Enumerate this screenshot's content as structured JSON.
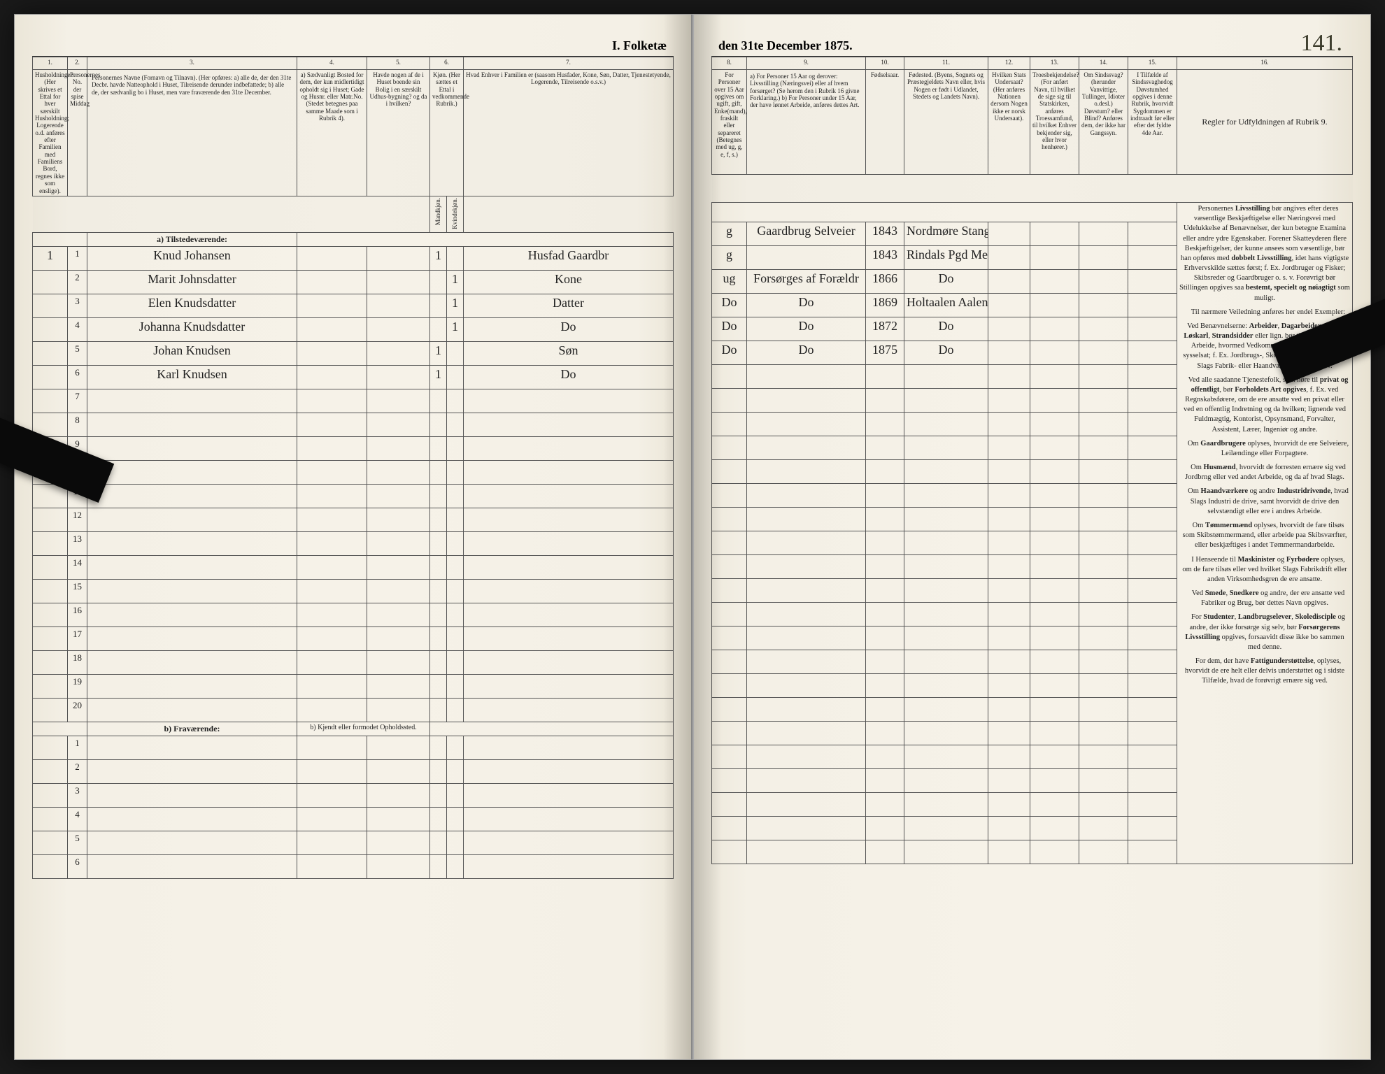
{
  "header": {
    "title_left": "I. Folketæ",
    "title_right": "den 31te December 1875.",
    "page_number": "141."
  },
  "columns_left": {
    "c1": "1.",
    "c2": "2.",
    "c3": "3.",
    "c4": "4.",
    "c5": "5.",
    "c6": "6.",
    "c7": "7.",
    "h1": "Husholdninger.\n(Her skrives et Ettal for hver særskilt Husholdning; Logerende o.d. anføres efter Familien med Familiens Bord, regnes ikke som enslige).",
    "h2": "Personernes No. der spise Middag",
    "h3": "Personernes Navne (Fornavn og Tilnavn).\n(Her opføres:\na) alle de, der den 31te Decbr. havde Natteophold i Huset, Tilreisende derunder indbefattede;\nb) alle de, der sædvanlig bo i Huset, men vare fraværende den 31te December.",
    "h4": "a) Sædvanligt Bosted for dem, der kun midlertidigt opholdt sig i Huset; Gade og Husnr. eller Matr.No. (Stedet betegnes paa samme Maade som i Rubrik 4).",
    "h5": "Havde nogen af de i Huset boende sin Bolig i en særskilt Udhus-bygning? og da i hvilken?",
    "h6a": "Mandkjøn.",
    "h6b": "Kvindekjøn.",
    "h6": "Kjøn.\n(Her sættes et Ettal i vedkommende Rubrik.)",
    "h7": "Hvad Enhver i Familien er (saasom Husfader, Kone, Søn, Datter, Tjenestetyende, Logerende, Tilreisende o.s.v.)"
  },
  "columns_right": {
    "c8": "8.",
    "c9": "9.",
    "c10": "10.",
    "c11": "11.",
    "c12": "12.",
    "c13": "13.",
    "c14": "14.",
    "c15": "15.",
    "c16": "16.",
    "h8": "For Personer over 15 Aar opgives om ugift, gift, Enke(mand), fraskilt eller separeret (Betegnes med ug, g, e, f, s.)",
    "h9": "a) For Personer 15 Aar og derover: Livsstilling (Næringsvei) eller af hvem forsørget? (Se herom den i Rubrik 16 givne Forklaring.)\nb) For Personer under 15 Aar, der have lønnet Arbeide, anføres dettes Art.",
    "h10": "Fødselsaar.",
    "h11": "Fødested.\n(Byens, Sognets og Præstegjeldets Navn eller, hvis Nogen er født i Udlandet, Stedets og Landets Navn).",
    "h12": "Hvilken Stats Undersaat? (Her anføres Nationen dersom Nogen ikke er norsk Undersaat).",
    "h13": "Troesbekjendelse? (For anført Navn, til hvilket de sige sig til Statskirken, anføres Troessamfund, til hvilket Enhver bekjender sig, eller hvor henhører.)",
    "h14": "Om Sindssvag? (herunder Vanvittige, Tullinger, Idioter o.desl.) Døvstum? eller Blind? Anføres dem, der ikke har Gangssyn.",
    "h15": "I Tilfælde af Sindssvaghedog Døvstumhed opgives i denne Rubrik, hvorvidt Sygdommen er indtraadt før eller efter det fyldte 4de Aar.",
    "h16": "Regler for Udfyldningen af Rubrik 9."
  },
  "sections": {
    "present": "a) Tilstedeværende:",
    "absent": "b) Fraværende:",
    "absent_note": "b) Kjendt eller formodet Opholdssted."
  },
  "rows": [
    {
      "n": "1",
      "hh": "1",
      "name": "Knud Johansen",
      "c4": "",
      "c5": "",
      "m": "1",
      "k": "",
      "rel": "Husfad Gaardbr",
      "civ": "g",
      "occ": "Gaardbrug Selveier",
      "year": "1843",
      "place": "Nordmøre Stangvik"
    },
    {
      "n": "2",
      "hh": "",
      "name": "Marit Johnsdatter",
      "c4": "",
      "c5": "",
      "m": "",
      "k": "1",
      "rel": "Kone",
      "civ": "g",
      "occ": "",
      "year": "1843",
      "place": "Rindals Pgd Meldal"
    },
    {
      "n": "3",
      "hh": "",
      "name": "Elen Knudsdatter",
      "c4": "",
      "c5": "",
      "m": "",
      "k": "1",
      "rel": "Datter",
      "civ": "ug",
      "occ": "Forsørges af Forældr",
      "year": "1866",
      "place": "Do"
    },
    {
      "n": "4",
      "hh": "",
      "name": "Johanna Knudsdatter",
      "c4": "",
      "c5": "",
      "m": "",
      "k": "1",
      "rel": "Do",
      "civ": "Do",
      "occ": "Do",
      "year": "1869",
      "place": "Holtaalen Aalen Sogn"
    },
    {
      "n": "5",
      "hh": "",
      "name": "Johan Knudsen",
      "c4": "",
      "c5": "",
      "m": "1",
      "k": "",
      "rel": "Søn",
      "civ": "Do",
      "occ": "Do",
      "year": "1872",
      "place": "Do"
    },
    {
      "n": "6",
      "hh": "",
      "name": "Karl Knudsen",
      "c4": "",
      "c5": "",
      "m": "1",
      "k": "",
      "rel": "Do",
      "civ": "Do",
      "occ": "Do",
      "year": "1875",
      "place": "Do"
    }
  ],
  "blank_rows_present": [
    "7",
    "8",
    "9",
    "10",
    "11",
    "12",
    "13",
    "14",
    "15",
    "16",
    "17",
    "18",
    "19",
    "20"
  ],
  "blank_rows_absent": [
    "1",
    "2",
    "3",
    "4",
    "5",
    "6"
  ],
  "instructions": {
    "p1": "Personernes Livsstilling bør angives efter deres væsentlige Beskjæftigelse eller Næringsvei med Udelukkelse af Benævnelser, der kun betegne Examina eller andre ydre Egenskaber. Forener Skatteyderen flere Beskjæftigelser, der kunne ansees som væsentlige, bør han opføres med dobbelt Livsstilling, idet hans vigtigste Erhvervskilde sættes først; f. Ex. Jordbruger og Fisker; Skibsreder og Gaardbruger o. s. v. Forøvrigt bør Stillingen opgives saa bestemt, specielt og nøiagtigt som muligt.",
    "p2": "Til nærmere Veiledning anføres her endel Exempler:",
    "p3": "Ved Benævnelserne: Arbeider, Dagarbeider, Inderst, Løskarl, Strandsidder eller lign. bør tilføies det Slags Arbeide, hvormed Vedkommende hovedsagelig er sysselsat; f. Ex. Jordbrugs-, Skovarbeide, Veiarbeide, et Slags Fabrik- eller Haandværksarbeide o. s. v.",
    "p4": "Ved alle saadanne Tjenestefolk, som høre til privat og offentligt, bør Forholdets Art opgives, f. Ex. ved Regnskabsførere, om de ere ansatte ved en privat eller ved en offentlig Indretning og da hvilken; lignende ved Fuldmægtig, Kontorist, Opsynsmand, Forvalter, Assistent, Lærer, Ingeniør og andre.",
    "p5": "Om Gaardbrugere oplyses, hvorvidt de ere Selveiere, Leilændinge eller Forpagtere.",
    "p6": "Om Husmænd, hvorvidt de forresten ernære sig ved Jordbrng eller ved andet Arbeide, og da af hvad Slags.",
    "p7": "Om Haandværkere og andre Industridrivende, hvad Slags Industri de drive, samt hvorvidt de drive den selvstændigt eller ere i andres Arbeide.",
    "p8": "Om Tømmermænd oplyses, hvorvidt de fare tilsøs som Skibstømmermænd, eller arbeide paa Skibsværfter, eller beskjæftiges i andet Tømmermandarbeide.",
    "p9": "I Henseende til Maskinister og Fyrbødere oplyses, om de fare tilsøs eller ved hvilket Slags Fabrikdrift eller anden Virksomhedsgren de ere ansatte.",
    "p10": "Ved Smede, Snedkere og andre, der ere ansatte ved Fabriker og Brug, bør dettes Navn opgives.",
    "p11": "For Studenter, Landbrugselever, Skoledisciple og andre, der ikke forsørge sig selv, bør Forsørgerens Livsstilling opgives, forsaavidt disse ikke bo sammen med denne.",
    "p12": "For dem, der have Fattigunderstøttelse, oplyses, hvorvidt de ere helt eller delvis understøttet og i sidste Tilfælde, hvad de forøvrigt ernære sig ved."
  },
  "colors": {
    "paper": "#f4f0e6",
    "ink": "#222222",
    "handwriting": "#2a2a22",
    "rule": "#555555"
  }
}
